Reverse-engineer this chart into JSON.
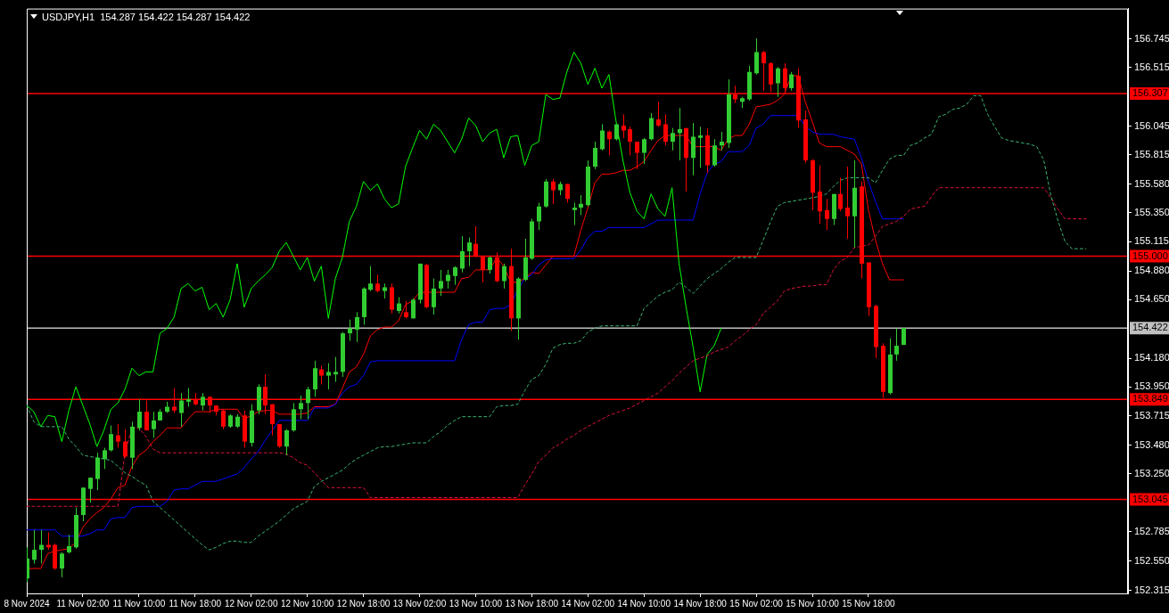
{
  "chart_data": {
    "type": "candlestick",
    "title": "USDJPY,H1  154.287 154.422 154.287 154.422",
    "categories": [
      "8 Nov 2024",
      null,
      null,
      null,
      null,
      null,
      null,
      null,
      "11 Nov 02:00",
      null,
      null,
      null,
      null,
      null,
      null,
      null,
      "11 Nov 10:00",
      null,
      null,
      null,
      null,
      null,
      null,
      null,
      "11 Nov 18:00",
      null,
      null,
      null,
      null,
      null,
      null,
      null,
      "12 Nov 02:00",
      null,
      null,
      null,
      null,
      null,
      null,
      null,
      "12 Nov 10:00",
      null,
      null,
      null,
      null,
      null,
      null,
      null,
      "12 Nov 18:00",
      null,
      null,
      null,
      null,
      null,
      null,
      null,
      "13 Nov 02:00",
      null,
      null,
      null,
      null,
      null,
      null,
      null,
      "13 Nov 10:00",
      null,
      null,
      null,
      null,
      null,
      null,
      null,
      "13 Nov 18:00",
      null,
      null,
      null,
      null,
      null,
      null,
      null,
      "14 Nov 02:00",
      null,
      null,
      null,
      null,
      null,
      null,
      null,
      "14 Nov 10:00",
      null,
      null,
      null,
      null,
      null,
      null,
      null,
      "14 Nov 18:00",
      null,
      null,
      null,
      null,
      null,
      null,
      null,
      "15 Nov 02:00",
      null,
      null,
      null,
      null,
      null,
      null,
      null,
      "15 Nov 10:00",
      null,
      null,
      null,
      null,
      null,
      null,
      null,
      "15 Nov 18:00",
      null,
      null,
      null,
      null,
      null,
      null,
      null,
      null,
      null,
      null,
      null,
      null,
      null,
      null,
      null,
      null,
      null,
      null,
      null,
      null,
      null,
      null,
      null,
      null,
      null,
      null,
      null,
      null,
      null,
      null,
      null,
      null,
      null,
      null,
      null,
      null,
      null
    ],
    "ylim": [
      152.29,
      156.99
    ],
    "yticks": [
      156.745,
      156.515,
      156.045,
      155.815,
      {
        "value": 155.58,
        "label": "155.580"
      },
      {
        "value": 155.35,
        "label": "155.350"
      },
      155.115,
      {
        "value": 154.88,
        "label": "154.880"
      },
      {
        "value": 154.65,
        "label": "154.650"
      },
      {
        "value": 154.18,
        "label": "154.180"
      },
      {
        "value": 153.95,
        "label": "153.950"
      },
      153.715,
      {
        "value": 153.48,
        "label": "153.480"
      },
      {
        "value": 153.25,
        "label": "153.250"
      },
      152.785,
      {
        "value": 152.55,
        "label": "152.550"
      },
      152.315
    ],
    "ref_lines": [
      {
        "axis": "y",
        "value": 156.307,
        "label": "156.307",
        "color": "#ff0000"
      },
      {
        "axis": "y",
        "value": 155.0,
        "label": "155.000",
        "color": "#ff0000"
      },
      {
        "axis": "y",
        "value": 154.422,
        "label": "154.422",
        "color": "#c0c0c0"
      },
      {
        "axis": "y",
        "value": 153.849,
        "label": "153.849",
        "color": "#ff0000"
      },
      {
        "axis": "y",
        "value": 153.045,
        "label": "153.045",
        "color": "#ff0000"
      }
    ],
    "series": [
      {
        "type": "line",
        "color": "#3cb371",
        "line_style": "dashed",
        "values": [
          153.8,
          153.67,
          153.63,
          153.63,
          153.63,
          153.63,
          153.53,
          153.47,
          153.4,
          153.39,
          153.38,
          153.37,
          153.36,
          153.31,
          153.26,
          153.23,
          153.19,
          153.16,
          153.03,
          152.98,
          152.93,
          152.88,
          152.83,
          152.78,
          152.73,
          152.68,
          152.64,
          152.66,
          152.69,
          152.71,
          152.71,
          152.7,
          152.7,
          152.75,
          152.79,
          152.83,
          152.87,
          152.92,
          152.97,
          153.0,
          153.03,
          153.15,
          153.19,
          153.22,
          153.25,
          153.28,
          153.33,
          153.37,
          153.4,
          153.43,
          153.46,
          153.47,
          153.47,
          153.48,
          153.49,
          153.5,
          153.5,
          153.5,
          153.55,
          153.59,
          153.64,
          153.68,
          153.71,
          153.71,
          153.71,
          153.71,
          153.71,
          153.79,
          153.8,
          153.8,
          153.81,
          153.92,
          154.01,
          154.04,
          154.13,
          154.26,
          154.29,
          154.3,
          154.3,
          154.32,
          154.39,
          154.42,
          154.44,
          154.44,
          154.44,
          154.44,
          154.44,
          154.44,
          154.58,
          154.63,
          154.68,
          154.71,
          154.73,
          154.79,
          154.75,
          154.7,
          154.76,
          154.82,
          154.86,
          154.9,
          154.95,
          154.99,
          154.99,
          154.99,
          154.99,
          155.13,
          155.27,
          155.4,
          155.43,
          155.44,
          155.45,
          155.46,
          155.47,
          155.48,
          155.5,
          155.56,
          155.61,
          155.63,
          155.63,
          155.63,
          155.63,
          155.59,
          155.69,
          155.78,
          155.81,
          155.81,
          155.89,
          155.91,
          155.95,
          155.98,
          156.12,
          156.14,
          156.18,
          156.19,
          156.22,
          156.29,
          156.29,
          156.14,
          156.04,
          155.95,
          155.93,
          155.92,
          155.91,
          155.9,
          155.88,
          155.77,
          155.49,
          155.29,
          155.12,
          155.06,
          155.06,
          155.06,
          null,
          null,
          null,
          null,
          null,
          null
        ]
      },
      {
        "type": "line",
        "color": "#dc143c",
        "line_style": "dashed",
        "values": [
          152.99,
          152.99,
          152.99,
          152.99,
          152.99,
          152.99,
          152.99,
          152.99,
          152.99,
          152.99,
          152.99,
          152.99,
          152.99,
          152.99,
          153.42,
          153.62,
          153.62,
          153.55,
          153.45,
          153.42,
          153.42,
          153.42,
          153.42,
          153.42,
          153.42,
          153.42,
          153.42,
          153.42,
          153.42,
          153.42,
          153.42,
          153.42,
          153.42,
          153.42,
          153.42,
          153.42,
          153.42,
          153.41,
          153.38,
          153.34,
          153.32,
          153.26,
          153.2,
          153.14,
          153.14,
          153.14,
          153.14,
          153.14,
          153.14,
          153.06,
          153.06,
          153.06,
          153.06,
          153.06,
          153.06,
          153.06,
          153.06,
          153.06,
          153.06,
          153.06,
          153.06,
          153.06,
          153.06,
          153.06,
          153.06,
          153.06,
          153.06,
          153.06,
          153.06,
          153.06,
          153.06,
          153.16,
          153.25,
          153.35,
          153.4,
          153.46,
          153.49,
          153.53,
          153.56,
          153.6,
          153.63,
          153.66,
          153.69,
          153.72,
          153.74,
          153.76,
          153.78,
          153.81,
          153.84,
          153.87,
          153.9,
          153.95,
          154.0,
          154.06,
          154.11,
          154.16,
          154.18,
          154.2,
          154.23,
          154.25,
          154.27,
          154.32,
          154.36,
          154.41,
          154.45,
          154.54,
          154.59,
          154.64,
          154.72,
          154.74,
          154.75,
          154.76,
          154.76,
          154.77,
          154.77,
          154.89,
          154.96,
          154.99,
          155.07,
          155.08,
          155.09,
          155.16,
          155.24,
          155.26,
          155.28,
          155.32,
          155.38,
          155.39,
          155.4,
          155.48,
          155.55,
          155.55,
          155.55,
          155.55,
          155.55,
          155.55,
          155.55,
          155.55,
          155.55,
          155.55,
          155.55,
          155.55,
          155.55,
          155.55,
          155.55,
          155.55,
          155.47,
          155.38,
          155.3,
          155.3,
          155.3,
          155.3,
          null,
          null,
          null,
          null,
          null,
          null
        ]
      },
      {
        "type": "line",
        "color": "#00ff00",
        "values": [
          153.8,
          153.75,
          153.63,
          153.72,
          153.71,
          153.51,
          153.76,
          153.95,
          153.8,
          153.65,
          153.47,
          153.6,
          153.77,
          153.82,
          153.93,
          154.1,
          154.04,
          154.07,
          154.07,
          154.38,
          154.42,
          154.51,
          154.74,
          154.78,
          154.72,
          154.75,
          154.57,
          154.62,
          154.51,
          154.65,
          154.94,
          154.59,
          154.74,
          154.8,
          154.85,
          154.91,
          155.04,
          155.11,
          155.0,
          154.89,
          154.99,
          154.8,
          154.92,
          154.5,
          154.82,
          154.99,
          155.28,
          155.4,
          155.6,
          155.53,
          155.58,
          155.46,
          155.39,
          155.42,
          155.72,
          155.87,
          156.01,
          155.94,
          156.06,
          156.01,
          155.92,
          155.83,
          155.94,
          156.11,
          156.05,
          155.92,
          155.99,
          156.02,
          155.79,
          155.96,
          155.97,
          155.73,
          155.89,
          155.92,
          156.3,
          156.26,
          156.27,
          156.48,
          156.64,
          156.55,
          156.38,
          156.51,
          156.35,
          156.46,
          156.09,
          155.77,
          155.51,
          155.36,
          155.3,
          155.5,
          155.38,
          155.32,
          155.55,
          154.94,
          154.59,
          154.27,
          153.91,
          154.21,
          154.28,
          154.422,
          null,
          null,
          null,
          null,
          null,
          null,
          null,
          null,
          null,
          null,
          null,
          null,
          null,
          null,
          null,
          null,
          null,
          null,
          null,
          null,
          null,
          null,
          null,
          null,
          null,
          null,
          null,
          null,
          null,
          null,
          null,
          null,
          null,
          null,
          null,
          null,
          null,
          null,
          null,
          null,
          null,
          null,
          null,
          null,
          null,
          null,
          null,
          null,
          null,
          null,
          null,
          null,
          null,
          null,
          null,
          null,
          null,
          null
        ]
      },
      {
        "type": "line",
        "color": "#0000ff",
        "values": [
          152.8,
          152.8,
          152.8,
          152.8,
          152.8,
          152.75,
          152.75,
          152.75,
          152.75,
          152.77,
          152.8,
          152.8,
          152.89,
          152.9,
          152.9,
          152.98,
          152.99,
          152.99,
          152.99,
          152.99,
          153.03,
          153.12,
          153.13,
          153.13,
          153.16,
          153.19,
          153.19,
          153.19,
          153.21,
          153.23,
          153.25,
          153.3,
          153.37,
          153.43,
          153.52,
          153.6,
          153.68,
          153.68,
          153.68,
          153.68,
          153.68,
          153.78,
          153.78,
          153.78,
          153.81,
          153.9,
          153.95,
          153.97,
          154.04,
          154.15,
          154.16,
          154.16,
          154.16,
          154.16,
          154.16,
          154.16,
          154.16,
          154.16,
          154.16,
          154.16,
          154.16,
          154.16,
          154.33,
          154.45,
          154.47,
          154.47,
          154.57,
          154.58,
          154.58,
          154.61,
          154.73,
          154.82,
          154.85,
          154.93,
          154.97,
          154.98,
          154.98,
          154.98,
          154.98,
          155.05,
          155.15,
          155.2,
          155.2,
          155.23,
          155.23,
          155.23,
          155.23,
          155.23,
          155.23,
          155.26,
          155.29,
          155.29,
          155.29,
          155.29,
          155.29,
          155.29,
          155.5,
          155.67,
          155.74,
          155.76,
          155.84,
          155.84,
          155.84,
          155.89,
          156.03,
          156.06,
          156.13,
          156.13,
          156.13,
          156.13,
          156.13,
          156.04,
          156.0,
          155.98,
          155.98,
          155.98,
          155.96,
          155.95,
          155.94,
          155.79,
          155.6,
          155.44,
          155.3,
          155.3,
          155.3,
          155.3,
          null,
          null,
          null,
          null,
          null,
          null,
          null,
          null,
          null,
          null,
          null,
          null,
          null,
          null,
          null,
          null,
          null,
          null,
          null,
          null,
          null,
          null,
          null,
          null,
          null,
          null,
          null,
          null,
          null,
          null,
          null,
          null
        ]
      },
      {
        "type": "line",
        "color": "#ff0000",
        "values": [
          152.49,
          152.49,
          152.49,
          152.61,
          152.63,
          152.64,
          152.65,
          152.7,
          152.82,
          152.89,
          152.94,
          152.98,
          153.05,
          153.14,
          153.16,
          153.31,
          153.4,
          153.44,
          153.51,
          153.56,
          153.62,
          153.62,
          153.62,
          153.69,
          153.75,
          153.75,
          153.75,
          153.77,
          153.77,
          153.77,
          153.77,
          153.69,
          153.72,
          153.75,
          153.76,
          153.76,
          153.73,
          153.73,
          153.73,
          153.73,
          153.74,
          153.79,
          153.79,
          153.79,
          153.81,
          153.94,
          154.07,
          154.11,
          154.21,
          154.36,
          154.41,
          154.43,
          154.43,
          154.48,
          154.61,
          154.64,
          154.71,
          154.71,
          154.71,
          154.71,
          154.71,
          154.71,
          154.82,
          154.83,
          154.89,
          154.89,
          154.89,
          154.99,
          154.92,
          154.79,
          154.79,
          154.82,
          154.87,
          154.86,
          154.93,
          155.0,
          155.0,
          155.0,
          155.0,
          155.21,
          155.39,
          155.59,
          155.66,
          155.66,
          155.67,
          155.69,
          155.69,
          155.72,
          155.76,
          155.85,
          155.93,
          155.97,
          155.97,
          155.97,
          155.97,
          155.88,
          155.88,
          155.88,
          155.88,
          155.85,
          155.94,
          155.97,
          155.97,
          156.06,
          156.2,
          156.21,
          156.22,
          156.25,
          156.3,
          156.45,
          156.45,
          156.24,
          156.08,
          155.91,
          155.88,
          155.88,
          155.88,
          155.85,
          155.82,
          155.74,
          155.37,
          155.13,
          154.94,
          154.81,
          154.81,
          154.81,
          null,
          null,
          null,
          null,
          null,
          null,
          null,
          null,
          null,
          null,
          null,
          null,
          null,
          null,
          null,
          null,
          null,
          null,
          null,
          null,
          null,
          null,
          null,
          null,
          null,
          null,
          null,
          null,
          null,
          null,
          null,
          null
        ]
      },
      {
        "ohlc": [
          [
            152.41,
            152.66,
            152.38,
            152.57
          ],
          [
            152.56,
            152.8,
            152.53,
            152.64
          ],
          [
            152.64,
            152.8,
            152.53,
            152.68
          ],
          [
            152.68,
            152.78,
            152.64,
            152.66
          ],
          [
            152.68,
            152.69,
            152.48,
            152.49
          ],
          [
            152.49,
            152.62,
            152.42,
            152.61
          ],
          [
            152.62,
            152.76,
            152.61,
            152.67
          ],
          [
            152.66,
            152.98,
            152.65,
            152.92
          ],
          [
            152.92,
            153.14,
            152.87,
            153.14
          ],
          [
            153.13,
            153.22,
            153.02,
            153.22
          ],
          [
            153.21,
            153.42,
            153.12,
            153.38
          ],
          [
            153.37,
            153.46,
            153.29,
            153.44
          ],
          [
            153.44,
            153.64,
            153.43,
            153.57
          ],
          [
            153.56,
            153.65,
            153.46,
            153.51
          ],
          [
            153.51,
            153.61,
            153.38,
            153.39
          ],
          [
            153.38,
            153.67,
            153.29,
            153.63
          ],
          [
            153.62,
            153.85,
            153.6,
            153.75
          ],
          [
            153.75,
            153.84,
            153.6,
            153.6
          ],
          [
            153.61,
            153.75,
            153.54,
            153.68
          ],
          [
            153.68,
            153.77,
            153.68,
            153.75
          ],
          [
            153.75,
            153.83,
            153.74,
            153.79
          ],
          [
            153.79,
            153.94,
            153.74,
            153.76
          ],
          [
            153.74,
            153.9,
            153.63,
            153.84
          ],
          [
            153.83,
            153.94,
            153.79,
            153.85
          ],
          [
            153.85,
            153.9,
            153.8,
            153.81
          ],
          [
            153.8,
            153.9,
            153.76,
            153.87
          ],
          [
            153.87,
            153.87,
            153.74,
            153.8
          ],
          [
            153.8,
            153.8,
            153.72,
            153.75
          ],
          [
            153.76,
            153.77,
            153.61,
            153.63
          ],
          [
            153.63,
            153.73,
            153.62,
            153.72
          ],
          [
            153.63,
            153.73,
            153.62,
            153.71
          ],
          [
            153.72,
            153.76,
            153.46,
            153.51
          ],
          [
            153.5,
            153.81,
            153.47,
            153.76
          ],
          [
            153.76,
            153.97,
            153.73,
            153.95
          ],
          [
            153.95,
            154.05,
            153.73,
            153.8
          ],
          [
            153.81,
            153.81,
            153.56,
            153.65
          ],
          [
            153.65,
            153.65,
            153.46,
            153.47
          ],
          [
            153.47,
            153.61,
            153.4,
            153.6
          ],
          [
            153.6,
            153.82,
            153.59,
            153.77
          ],
          [
            153.77,
            153.88,
            153.69,
            153.82
          ],
          [
            153.82,
            153.95,
            153.69,
            153.93
          ],
          [
            153.93,
            154.16,
            153.87,
            154.1
          ],
          [
            154.09,
            154.12,
            153.97,
            154.04
          ],
          [
            154.04,
            154.14,
            153.93,
            154.07
          ],
          [
            154.05,
            154.19,
            153.99,
            154.07
          ],
          [
            154.07,
            154.39,
            154.03,
            154.38
          ],
          [
            154.38,
            154.49,
            154.32,
            154.42
          ],
          [
            154.41,
            154.55,
            154.31,
            154.51
          ],
          [
            154.51,
            154.75,
            154.45,
            154.74
          ],
          [
            154.73,
            154.92,
            154.72,
            154.78
          ],
          [
            154.78,
            154.85,
            154.71,
            154.72
          ],
          [
            154.72,
            154.78,
            154.66,
            154.75
          ],
          [
            154.75,
            154.78,
            154.54,
            154.57
          ],
          [
            154.56,
            154.67,
            154.54,
            154.62
          ],
          [
            154.55,
            154.64,
            154.5,
            154.51
          ],
          [
            154.5,
            154.66,
            154.5,
            154.65
          ],
          [
            154.65,
            154.94,
            154.62,
            154.94
          ],
          [
            154.93,
            154.94,
            154.58,
            154.59
          ],
          [
            154.59,
            154.82,
            154.53,
            154.74
          ],
          [
            154.74,
            154.89,
            154.68,
            154.8
          ],
          [
            154.8,
            154.89,
            154.74,
            154.85
          ],
          [
            154.84,
            154.92,
            154.77,
            154.91
          ],
          [
            154.9,
            155.16,
            154.87,
            155.04
          ],
          [
            155.04,
            155.15,
            154.92,
            155.11
          ],
          [
            155.1,
            155.24,
            154.99,
            155.0
          ],
          [
            155.0,
            155.0,
            154.79,
            154.89
          ],
          [
            154.89,
            155.0,
            154.86,
            154.99
          ],
          [
            154.99,
            155.03,
            154.79,
            154.8
          ],
          [
            154.8,
            154.94,
            154.74,
            154.92
          ],
          [
            154.92,
            155.06,
            154.4,
            154.5
          ],
          [
            154.5,
            154.83,
            154.33,
            154.82
          ],
          [
            154.81,
            155.14,
            154.8,
            154.99
          ],
          [
            154.98,
            155.3,
            154.97,
            155.28
          ],
          [
            155.28,
            155.43,
            155.21,
            155.4
          ],
          [
            155.4,
            155.62,
            155.39,
            155.6
          ],
          [
            155.6,
            155.62,
            155.42,
            155.53
          ],
          [
            155.53,
            155.6,
            155.49,
            155.58
          ],
          [
            155.58,
            155.58,
            155.43,
            155.46
          ],
          [
            155.37,
            155.43,
            155.25,
            155.39
          ],
          [
            155.39,
            155.49,
            155.33,
            155.42
          ],
          [
            155.41,
            155.77,
            155.4,
            155.72
          ],
          [
            155.72,
            155.92,
            155.7,
            155.87
          ],
          [
            155.86,
            156.06,
            155.85,
            156.01
          ],
          [
            156.0,
            156.01,
            155.81,
            155.94
          ],
          [
            155.94,
            156.06,
            155.93,
            156.06
          ],
          [
            156.05,
            156.14,
            155.95,
            156.01
          ],
          [
            156.02,
            156.04,
            155.81,
            155.92
          ],
          [
            155.92,
            155.92,
            155.7,
            155.83
          ],
          [
            155.83,
            155.95,
            155.74,
            155.94
          ],
          [
            155.94,
            156.15,
            155.93,
            156.11
          ],
          [
            156.1,
            156.24,
            156.04,
            156.05
          ],
          [
            156.06,
            156.14,
            155.89,
            155.92
          ],
          [
            155.92,
            156.03,
            155.85,
            155.99
          ],
          [
            155.99,
            156.19,
            155.77,
            156.02
          ],
          [
            156.03,
            156.03,
            155.52,
            155.79
          ],
          [
            155.79,
            156.07,
            155.65,
            155.96
          ],
          [
            155.95,
            156.04,
            155.71,
            155.97
          ],
          [
            155.97,
            156.03,
            155.67,
            155.73
          ],
          [
            155.73,
            155.94,
            155.72,
            155.89
          ],
          [
            155.89,
            156.0,
            155.85,
            155.92
          ],
          [
            155.91,
            156.42,
            155.87,
            156.3
          ],
          [
            156.3,
            156.37,
            156.23,
            156.26
          ],
          [
            156.24,
            156.28,
            156.19,
            156.27
          ],
          [
            156.26,
            156.53,
            156.25,
            156.48
          ],
          [
            156.47,
            156.75,
            156.46,
            156.64
          ],
          [
            156.64,
            156.65,
            156.33,
            156.55
          ],
          [
            156.55,
            156.56,
            156.32,
            156.38
          ],
          [
            156.39,
            156.52,
            156.28,
            156.51
          ],
          [
            156.51,
            156.55,
            156.31,
            156.35
          ],
          [
            156.35,
            156.48,
            156.33,
            156.46
          ],
          [
            156.45,
            156.51,
            156.03,
            156.09
          ],
          [
            156.1,
            156.17,
            155.75,
            155.77
          ],
          [
            155.77,
            155.78,
            155.37,
            155.51
          ],
          [
            155.52,
            155.73,
            155.26,
            155.36
          ],
          [
            155.37,
            155.46,
            155.21,
            155.3
          ],
          [
            155.3,
            155.5,
            155.25,
            155.5
          ],
          [
            155.5,
            155.63,
            155.36,
            155.38
          ],
          [
            155.39,
            155.72,
            155.14,
            155.32
          ],
          [
            155.32,
            155.77,
            155.07,
            155.55
          ],
          [
            155.56,
            155.6,
            154.82,
            154.94
          ],
          [
            154.95,
            154.95,
            154.52,
            154.59
          ],
          [
            154.6,
            154.61,
            154.18,
            154.27
          ],
          [
            154.28,
            154.3,
            153.86,
            153.91
          ],
          [
            153.9,
            154.34,
            153.89,
            154.21
          ],
          [
            154.21,
            154.42,
            154.16,
            154.28
          ],
          [
            154.287,
            154.422,
            154.287,
            154.422
          ],
          null,
          null,
          null,
          null,
          null,
          null,
          null,
          null,
          null,
          null,
          null,
          null,
          null,
          null,
          null,
          null,
          null,
          null,
          null,
          null,
          null,
          null,
          null,
          null,
          null,
          null,
          null,
          null,
          null,
          null,
          null,
          null
        ],
        "colors": [
          "#32cd32",
          "#32cd32",
          "#32cd32",
          "#ff0000",
          "#ff0000",
          "#32cd32",
          "#32cd32",
          "#32cd32",
          "#32cd32",
          "#32cd32",
          "#32cd32",
          "#32cd32",
          "#32cd32",
          "#ff0000",
          "#ff0000",
          "#32cd32",
          "#32cd32",
          "#ff0000",
          "#32cd32",
          "#32cd32",
          "#32cd32",
          "#ff0000",
          "#32cd32",
          "#32cd32",
          "#ff0000",
          "#32cd32",
          "#ff0000",
          "#ff0000",
          "#ff0000",
          "#32cd32",
          "#32cd32",
          "#ff0000",
          "#32cd32",
          "#32cd32",
          "#ff0000",
          "#ff0000",
          "#ff0000",
          "#32cd32",
          "#32cd32",
          "#32cd32",
          "#32cd32",
          "#32cd32",
          "#ff0000",
          "#32cd32",
          "#32cd32",
          "#32cd32",
          "#32cd32",
          "#32cd32",
          "#32cd32",
          "#32cd32",
          "#ff0000",
          "#32cd32",
          "#ff0000",
          "#32cd32",
          "#ff0000",
          "#32cd32",
          "#32cd32",
          "#ff0000",
          "#32cd32",
          "#32cd32",
          "#32cd32",
          "#32cd32",
          "#32cd32",
          "#32cd32",
          "#ff0000",
          "#ff0000",
          "#32cd32",
          "#ff0000",
          "#32cd32",
          "#ff0000",
          "#32cd32",
          "#32cd32",
          "#32cd32",
          "#32cd32",
          "#32cd32",
          "#ff0000",
          "#32cd32",
          "#ff0000",
          "#32cd32",
          "#32cd32",
          "#32cd32",
          "#32cd32",
          "#32cd32",
          "#ff0000",
          "#32cd32",
          "#ff0000",
          "#ff0000",
          "#ff0000",
          "#32cd32",
          "#32cd32",
          "#ff0000",
          "#ff0000",
          "#32cd32",
          "#32cd32",
          "#ff0000",
          "#32cd32",
          "#32cd32",
          "#ff0000",
          "#32cd32",
          "#32cd32",
          "#32cd32",
          "#ff0000",
          "#32cd32",
          "#32cd32",
          "#32cd32",
          "#ff0000",
          "#ff0000",
          "#32cd32",
          "#ff0000",
          "#32cd32",
          "#ff0000",
          "#ff0000",
          "#ff0000",
          "#ff0000",
          "#ff0000",
          "#32cd32",
          "#ff0000",
          "#ff0000",
          "#32cd32",
          "#ff0000",
          "#ff0000",
          "#ff0000",
          "#ff0000",
          "#32cd32",
          "#32cd32",
          "#32cd32",
          null,
          null,
          null,
          null,
          null,
          null,
          null,
          null,
          null,
          null,
          null,
          null,
          null,
          null,
          null,
          null,
          null,
          null,
          null,
          null,
          null,
          null,
          null,
          null,
          null,
          null,
          null,
          null,
          null,
          null,
          null,
          null
        ]
      }
    ]
  }
}
